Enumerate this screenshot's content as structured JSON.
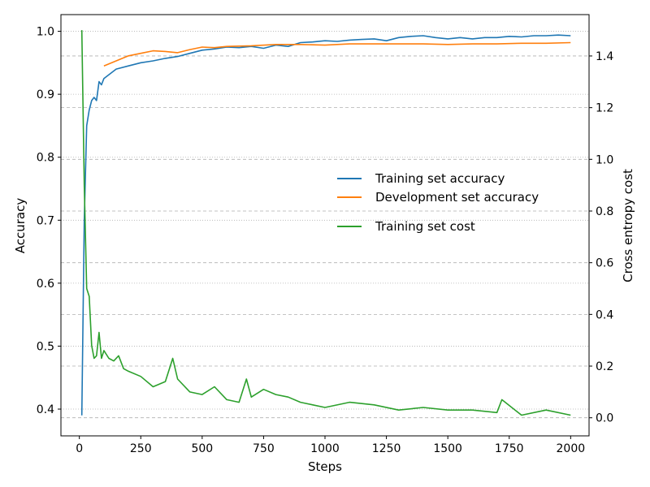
{
  "chart_data": {
    "type": "line",
    "xlabel": "Steps",
    "ylabel_left": "Accuracy",
    "ylabel_right": "Cross entropy cost",
    "xlim": [
      -75,
      2075
    ],
    "ylim_left": [
      0.3575,
      1.0265
    ],
    "ylim_right": [
      -0.07,
      1.56
    ],
    "x_ticks": [
      0,
      250,
      500,
      750,
      1000,
      1250,
      1500,
      1750,
      2000
    ],
    "y_ticks_left": [
      0.4,
      0.5,
      0.6,
      0.7,
      0.8,
      0.9,
      1.0
    ],
    "y_ticks_right": [
      0.0,
      0.2,
      0.4,
      0.6,
      0.8,
      1.0,
      1.2,
      1.4
    ],
    "grid": {
      "left": "dotted",
      "right": "dashed"
    },
    "legend_position": "center-right",
    "series": [
      {
        "name": "Training set accuracy",
        "axis": "left",
        "color": "#1f77b4",
        "x": [
          10,
          20,
          30,
          40,
          50,
          60,
          70,
          80,
          90,
          100,
          150,
          200,
          250,
          300,
          350,
          400,
          450,
          500,
          550,
          600,
          650,
          700,
          750,
          800,
          850,
          900,
          950,
          1000,
          1050,
          1100,
          1150,
          1200,
          1250,
          1300,
          1350,
          1400,
          1450,
          1500,
          1550,
          1600,
          1650,
          1700,
          1750,
          1800,
          1850,
          1900,
          1950,
          2000
        ],
        "values": [
          0.39,
          0.7,
          0.85,
          0.875,
          0.89,
          0.895,
          0.89,
          0.92,
          0.915,
          0.925,
          0.94,
          0.945,
          0.95,
          0.953,
          0.957,
          0.96,
          0.965,
          0.97,
          0.972,
          0.975,
          0.974,
          0.976,
          0.973,
          0.978,
          0.976,
          0.982,
          0.983,
          0.985,
          0.984,
          0.986,
          0.987,
          0.988,
          0.985,
          0.99,
          0.992,
          0.993,
          0.99,
          0.988,
          0.99,
          0.988,
          0.99,
          0.99,
          0.992,
          0.991,
          0.993,
          0.993,
          0.994,
          0.993
        ]
      },
      {
        "name": "Development set accuracy",
        "axis": "left",
        "color": "#ff7f0e",
        "x": [
          100,
          150,
          200,
          250,
          300,
          350,
          400,
          450,
          500,
          550,
          600,
          700,
          800,
          900,
          1000,
          1100,
          1200,
          1300,
          1400,
          1500,
          1600,
          1700,
          1800,
          1900,
          2000
        ],
        "values": [
          0.945,
          0.953,
          0.961,
          0.965,
          0.969,
          0.968,
          0.966,
          0.971,
          0.975,
          0.974,
          0.976,
          0.977,
          0.979,
          0.979,
          0.978,
          0.98,
          0.98,
          0.98,
          0.98,
          0.979,
          0.98,
          0.98,
          0.981,
          0.981,
          0.982
        ]
      },
      {
        "name": "Training set cost",
        "axis": "right",
        "color": "#2ca02c",
        "x": [
          10,
          20,
          30,
          40,
          50,
          60,
          70,
          80,
          90,
          100,
          120,
          140,
          160,
          180,
          200,
          250,
          300,
          350,
          380,
          400,
          450,
          500,
          550,
          600,
          650,
          680,
          700,
          750,
          800,
          850,
          900,
          950,
          1000,
          1100,
          1200,
          1300,
          1400,
          1500,
          1600,
          1700,
          1720,
          1800,
          1900,
          2000
        ],
        "values": [
          1.5,
          0.9,
          0.5,
          0.47,
          0.28,
          0.23,
          0.24,
          0.33,
          0.23,
          0.26,
          0.23,
          0.22,
          0.24,
          0.19,
          0.18,
          0.16,
          0.12,
          0.14,
          0.23,
          0.15,
          0.1,
          0.09,
          0.12,
          0.07,
          0.06,
          0.15,
          0.08,
          0.11,
          0.09,
          0.08,
          0.06,
          0.05,
          0.04,
          0.06,
          0.05,
          0.03,
          0.04,
          0.03,
          0.03,
          0.02,
          0.07,
          0.01,
          0.03,
          0.01
        ]
      }
    ]
  }
}
